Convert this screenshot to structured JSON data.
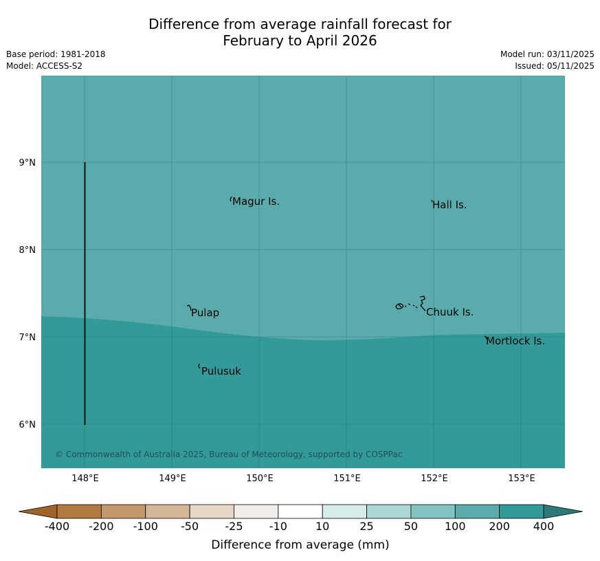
{
  "header": {
    "title_line1": "Difference from average rainfall forecast for",
    "title_line2": "February to April 2026",
    "base_period": "Base period: 1981-2018",
    "model": "Model: ACCESS-S2",
    "model_run": "Model run: 03/11/2025",
    "issued": "Issued: 05/11/2025"
  },
  "map": {
    "lat_labels": [
      "9°N",
      "8°N",
      "7°N",
      "6°N"
    ],
    "lon_labels": [
      "148°E",
      "149°E",
      "150°E",
      "151°E",
      "152°E",
      "153°E"
    ],
    "places": {
      "magur": "Magur Is.",
      "hall": "Hall Is.",
      "pulap": "Pulap",
      "chuuk": "Chuuk Is.",
      "mortlock": "Mortlock Is.",
      "pulusuk": "Pulusuk"
    },
    "copyright": "© Commonwealth of Australia 2025, Bureau of Meteorology, supported by COSPPac",
    "colors": {
      "category_100_200": "#5aabac",
      "category_200_400": "#329a98"
    }
  },
  "colorbar": {
    "ticks": [
      "-400",
      "-200",
      "-100",
      "-50",
      "-25",
      "-10",
      "10",
      "25",
      "50",
      "100",
      "200",
      "400"
    ],
    "colors": [
      "#9e6328",
      "#b27a40",
      "#c4976d",
      "#d4b596",
      "#e6d6c6",
      "#f1eeea",
      "#ffffff",
      "#d7ebea",
      "#add7d6",
      "#83c3c2",
      "#5aabac",
      "#329a98",
      "#2a7a78"
    ],
    "label": "Difference from average (mm)"
  }
}
